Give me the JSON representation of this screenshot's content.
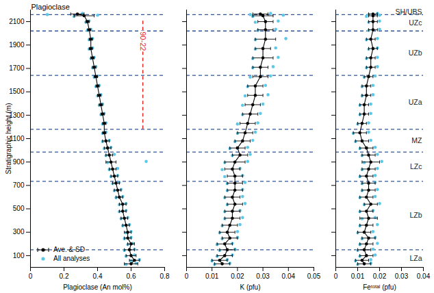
{
  "chart_data": [
    {
      "type": "scatter",
      "title": "Plagioclase",
      "xlabel": "Plagioclase (An mol%)",
      "ylabel": "Stratigraphic height (m)",
      "xlim": [
        0,
        0.8
      ],
      "xticks": [
        0,
        0.2,
        0.4,
        0.6,
        0.8
      ],
      "ylim": [
        0,
        2200
      ],
      "yticks": [
        100,
        300,
        500,
        700,
        900,
        1100,
        1300,
        1500,
        1700,
        1900,
        2100
      ],
      "legend": "lower left",
      "boundaries": {
        "values": [
          150,
          735,
          985,
          1180,
          1640,
          2020,
          2160
        ],
        "color": "#2f5597",
        "line_style": "dashed"
      },
      "annotations": [
        {
          "text": "90-22",
          "x": 0.67,
          "y": [
            1180,
            2120
          ],
          "color": "#e8251f",
          "line_style": "dashed"
        }
      ],
      "series": [
        {
          "name": "Ave. & SD",
          "type": "line",
          "marker": "circle",
          "color": "#000000",
          "y": [
            30,
            60,
            100,
            150,
            200,
            250,
            300,
            360,
            420,
            480,
            540,
            600,
            660,
            720,
            780,
            840,
            900,
            960,
            1020,
            1080,
            1150,
            1230,
            1310,
            1390,
            1470,
            1550,
            1630,
            1710,
            1790,
            1870,
            1950,
            2030,
            2100,
            2150,
            2165
          ],
          "x": [
            0.6,
            0.62,
            0.6,
            0.59,
            0.6,
            0.58,
            0.58,
            0.57,
            0.56,
            0.55,
            0.55,
            0.53,
            0.52,
            0.51,
            0.5,
            0.49,
            0.48,
            0.47,
            0.46,
            0.45,
            0.44,
            0.44,
            0.43,
            0.42,
            0.41,
            0.4,
            0.39,
            0.38,
            0.37,
            0.36,
            0.36,
            0.35,
            0.34,
            0.32,
            0.28
          ],
          "sd": [
            0.04,
            0.03,
            0.03,
            0.03,
            0.02,
            0.02,
            0.02,
            0.02,
            0.02,
            0.02,
            0.02,
            0.02,
            0.02,
            0.02,
            0.02,
            0.02,
            0.03,
            0.02,
            0.02,
            0.02,
            0.01,
            0.01,
            0.01,
            0.01,
            0.01,
            0.01,
            0.01,
            0.01,
            0.01,
            0.01,
            0.01,
            0.01,
            0.01,
            0.06,
            0.04
          ]
        },
        {
          "name": "All analyses",
          "type": "scatter",
          "marker": "circle",
          "color": "#5bc8e8",
          "y": [
            25,
            35,
            55,
            65,
            95,
            105,
            145,
            155,
            195,
            205,
            245,
            255,
            295,
            305,
            355,
            365,
            415,
            425,
            475,
            485,
            535,
            545,
            595,
            605,
            655,
            665,
            715,
            725,
            775,
            785,
            835,
            845,
            895,
            905,
            955,
            965,
            1015,
            1025,
            1075,
            1085,
            1145,
            1155,
            1225,
            1235,
            1305,
            1315,
            1385,
            1395,
            1465,
            1475,
            1545,
            1555,
            1625,
            1635,
            1705,
            1715,
            1785,
            1795,
            1865,
            1875,
            1945,
            1955,
            2025,
            2035,
            2095,
            2105,
            2145,
            2155,
            2160,
            2170
          ],
          "x": [
            0.57,
            0.63,
            0.6,
            0.65,
            0.57,
            0.62,
            0.56,
            0.62,
            0.58,
            0.61,
            0.56,
            0.6,
            0.57,
            0.6,
            0.55,
            0.59,
            0.54,
            0.58,
            0.53,
            0.57,
            0.53,
            0.57,
            0.51,
            0.55,
            0.5,
            0.54,
            0.49,
            0.53,
            0.48,
            0.52,
            0.47,
            0.52,
            0.46,
            0.69,
            0.45,
            0.5,
            0.44,
            0.48,
            0.43,
            0.47,
            0.43,
            0.45,
            0.43,
            0.45,
            0.42,
            0.44,
            0.41,
            0.43,
            0.4,
            0.42,
            0.39,
            0.41,
            0.38,
            0.4,
            0.37,
            0.39,
            0.36,
            0.38,
            0.35,
            0.37,
            0.35,
            0.37,
            0.34,
            0.36,
            0.33,
            0.35,
            0.26,
            0.4,
            0.1,
            0.31
          ]
        }
      ]
    },
    {
      "type": "scatter",
      "xlabel": "K (pfu)",
      "xlim": [
        0,
        0.05
      ],
      "xticks": [
        0,
        0.01,
        0.02,
        0.03,
        0.04,
        0.05
      ],
      "ylim": [
        0,
        2200
      ],
      "yticks": [
        100,
        300,
        500,
        700,
        900,
        1100,
        1300,
        1500,
        1700,
        1900,
        2100
      ],
      "tick_labels": "x",
      "boundaries": {
        "values": [
          150,
          735,
          985,
          1180,
          1640,
          2020,
          2160
        ],
        "color": "#2f5597",
        "line_style": "dashed"
      },
      "series": [
        {
          "name": "Ave. & SD",
          "type": "line",
          "marker": "circle",
          "color": "#000000",
          "y": [
            30,
            60,
            100,
            150,
            200,
            250,
            300,
            360,
            420,
            480,
            540,
            600,
            660,
            720,
            780,
            840,
            900,
            960,
            1020,
            1080,
            1150,
            1230,
            1310,
            1390,
            1470,
            1550,
            1630,
            1710,
            1790,
            1870,
            1950,
            2030,
            2100,
            2150,
            2165
          ],
          "x": [
            0.014,
            0.013,
            0.015,
            0.016,
            0.015,
            0.017,
            0.016,
            0.017,
            0.018,
            0.018,
            0.019,
            0.018,
            0.019,
            0.019,
            0.019,
            0.018,
            0.019,
            0.021,
            0.02,
            0.022,
            0.023,
            0.024,
            0.025,
            0.026,
            0.027,
            0.027,
            0.029,
            0.029,
            0.03,
            0.03,
            0.031,
            0.031,
            0.031,
            0.03,
            0.029
          ],
          "sd": [
            0.003,
            0.003,
            0.003,
            0.003,
            0.003,
            0.003,
            0.003,
            0.003,
            0.003,
            0.003,
            0.003,
            0.003,
            0.003,
            0.003,
            0.003,
            0.003,
            0.004,
            0.003,
            0.003,
            0.003,
            0.003,
            0.003,
            0.003,
            0.003,
            0.003,
            0.003,
            0.003,
            0.003,
            0.004,
            0.003,
            0.004,
            0.003,
            0.003,
            0.004,
            0.003
          ]
        },
        {
          "name": "All analyses",
          "type": "scatter",
          "marker": "circle",
          "color": "#5bc8e8",
          "y": [
            25,
            35,
            55,
            65,
            95,
            105,
            145,
            155,
            195,
            205,
            245,
            255,
            295,
            305,
            355,
            365,
            415,
            425,
            475,
            485,
            535,
            545,
            595,
            605,
            655,
            665,
            715,
            725,
            775,
            785,
            835,
            845,
            895,
            905,
            955,
            965,
            1015,
            1025,
            1075,
            1085,
            1145,
            1155,
            1225,
            1235,
            1305,
            1315,
            1385,
            1395,
            1465,
            1475,
            1545,
            1555,
            1625,
            1635,
            1705,
            1715,
            1785,
            1795,
            1865,
            1875,
            1945,
            1955,
            2025,
            2035,
            2095,
            2105,
            2145,
            2155,
            2160,
            2170
          ],
          "x": [
            0.011,
            0.017,
            0.01,
            0.016,
            0.012,
            0.018,
            0.013,
            0.019,
            0.012,
            0.018,
            0.014,
            0.02,
            0.013,
            0.02,
            0.014,
            0.021,
            0.015,
            0.022,
            0.015,
            0.021,
            0.016,
            0.023,
            0.015,
            0.022,
            0.016,
            0.022,
            0.016,
            0.023,
            0.015,
            0.022,
            0.014,
            0.021,
            0.015,
            0.024,
            0.018,
            0.025,
            0.017,
            0.024,
            0.019,
            0.026,
            0.02,
            0.027,
            0.02,
            0.028,
            0.022,
            0.029,
            0.022,
            0.03,
            0.023,
            0.032,
            0.024,
            0.031,
            0.025,
            0.033,
            0.026,
            0.034,
            0.026,
            0.036,
            0.027,
            0.035,
            0.027,
            0.039,
            0.028,
            0.035,
            0.027,
            0.036,
            0.026,
            0.038,
            0.025,
            0.033
          ]
        }
      ]
    },
    {
      "type": "scatter",
      "xlabel": "Feᵗᵒᵗᵃˡ (pfu)",
      "xlim": [
        0,
        0.04
      ],
      "xticks": [
        0,
        0.01,
        0.02,
        0.03,
        0.04
      ],
      "ylim": [
        0,
        2200
      ],
      "yticks": [
        100,
        300,
        500,
        700,
        900,
        1100,
        1300,
        1500,
        1700,
        1900,
        2100
      ],
      "tick_labels": "x",
      "boundaries": {
        "values": [
          150,
          735,
          985,
          1180,
          1640,
          2020,
          2160
        ],
        "color": "#2f5597",
        "line_style": "dashed"
      },
      "zones": {
        "labels": [
          "LZa",
          "LZb",
          "LZc",
          "MZ",
          "UZa",
          "UZb",
          "UZc",
          "SH/UBS"
        ]
      },
      "series": [
        {
          "name": "Ave. & SD",
          "type": "line",
          "marker": "circle",
          "color": "#000000",
          "y": [
            30,
            60,
            100,
            150,
            200,
            250,
            300,
            360,
            420,
            480,
            540,
            600,
            660,
            720,
            780,
            840,
            900,
            960,
            1020,
            1080,
            1150,
            1230,
            1310,
            1390,
            1470,
            1550,
            1630,
            1710,
            1790,
            1870,
            1950,
            2030,
            2100,
            2150,
            2165
          ],
          "x": [
            0.013,
            0.012,
            0.014,
            0.013,
            0.014,
            0.015,
            0.013,
            0.014,
            0.015,
            0.014,
            0.016,
            0.014,
            0.015,
            0.015,
            0.014,
            0.015,
            0.016,
            0.015,
            0.014,
            0.012,
            0.011,
            0.012,
            0.013,
            0.013,
            0.014,
            0.014,
            0.015,
            0.016,
            0.016,
            0.017,
            0.016,
            0.017,
            0.017,
            0.017,
            0.017
          ],
          "sd": [
            0.003,
            0.003,
            0.003,
            0.003,
            0.003,
            0.003,
            0.003,
            0.003,
            0.004,
            0.003,
            0.003,
            0.003,
            0.003,
            0.003,
            0.003,
            0.003,
            0.004,
            0.003,
            0.003,
            0.003,
            0.003,
            0.002,
            0.002,
            0.002,
            0.002,
            0.002,
            0.002,
            0.002,
            0.002,
            0.002,
            0.002,
            0.002,
            0.002,
            0.002,
            0.002
          ]
        },
        {
          "name": "All analyses",
          "type": "scatter",
          "marker": "circle",
          "color": "#5bc8e8",
          "y": [
            25,
            35,
            55,
            65,
            95,
            105,
            145,
            155,
            195,
            205,
            245,
            255,
            295,
            305,
            355,
            365,
            415,
            425,
            475,
            485,
            535,
            545,
            595,
            605,
            655,
            665,
            715,
            725,
            775,
            785,
            835,
            845,
            895,
            905,
            955,
            965,
            1015,
            1025,
            1075,
            1085,
            1145,
            1155,
            1225,
            1235,
            1305,
            1315,
            1385,
            1395,
            1465,
            1475,
            1545,
            1555,
            1625,
            1635,
            1705,
            1715,
            1785,
            1795,
            1865,
            1875,
            1945,
            1955,
            2025,
            2035,
            2095,
            2105,
            2145,
            2155,
            2160,
            2170
          ],
          "x": [
            0.01,
            0.016,
            0.009,
            0.016,
            0.011,
            0.018,
            0.01,
            0.017,
            0.011,
            0.019,
            0.012,
            0.018,
            0.01,
            0.017,
            0.011,
            0.019,
            0.012,
            0.018,
            0.011,
            0.017,
            0.013,
            0.02,
            0.011,
            0.018,
            0.012,
            0.019,
            0.012,
            0.018,
            0.011,
            0.018,
            0.012,
            0.019,
            0.013,
            0.021,
            0.012,
            0.019,
            0.011,
            0.018,
            0.009,
            0.016,
            0.008,
            0.015,
            0.01,
            0.015,
            0.011,
            0.016,
            0.011,
            0.016,
            0.012,
            0.017,
            0.012,
            0.017,
            0.013,
            0.018,
            0.014,
            0.019,
            0.014,
            0.019,
            0.015,
            0.019,
            0.014,
            0.019,
            0.015,
            0.02,
            0.015,
            0.02,
            0.014,
            0.02,
            0.015,
            0.019
          ]
        }
      ]
    }
  ]
}
